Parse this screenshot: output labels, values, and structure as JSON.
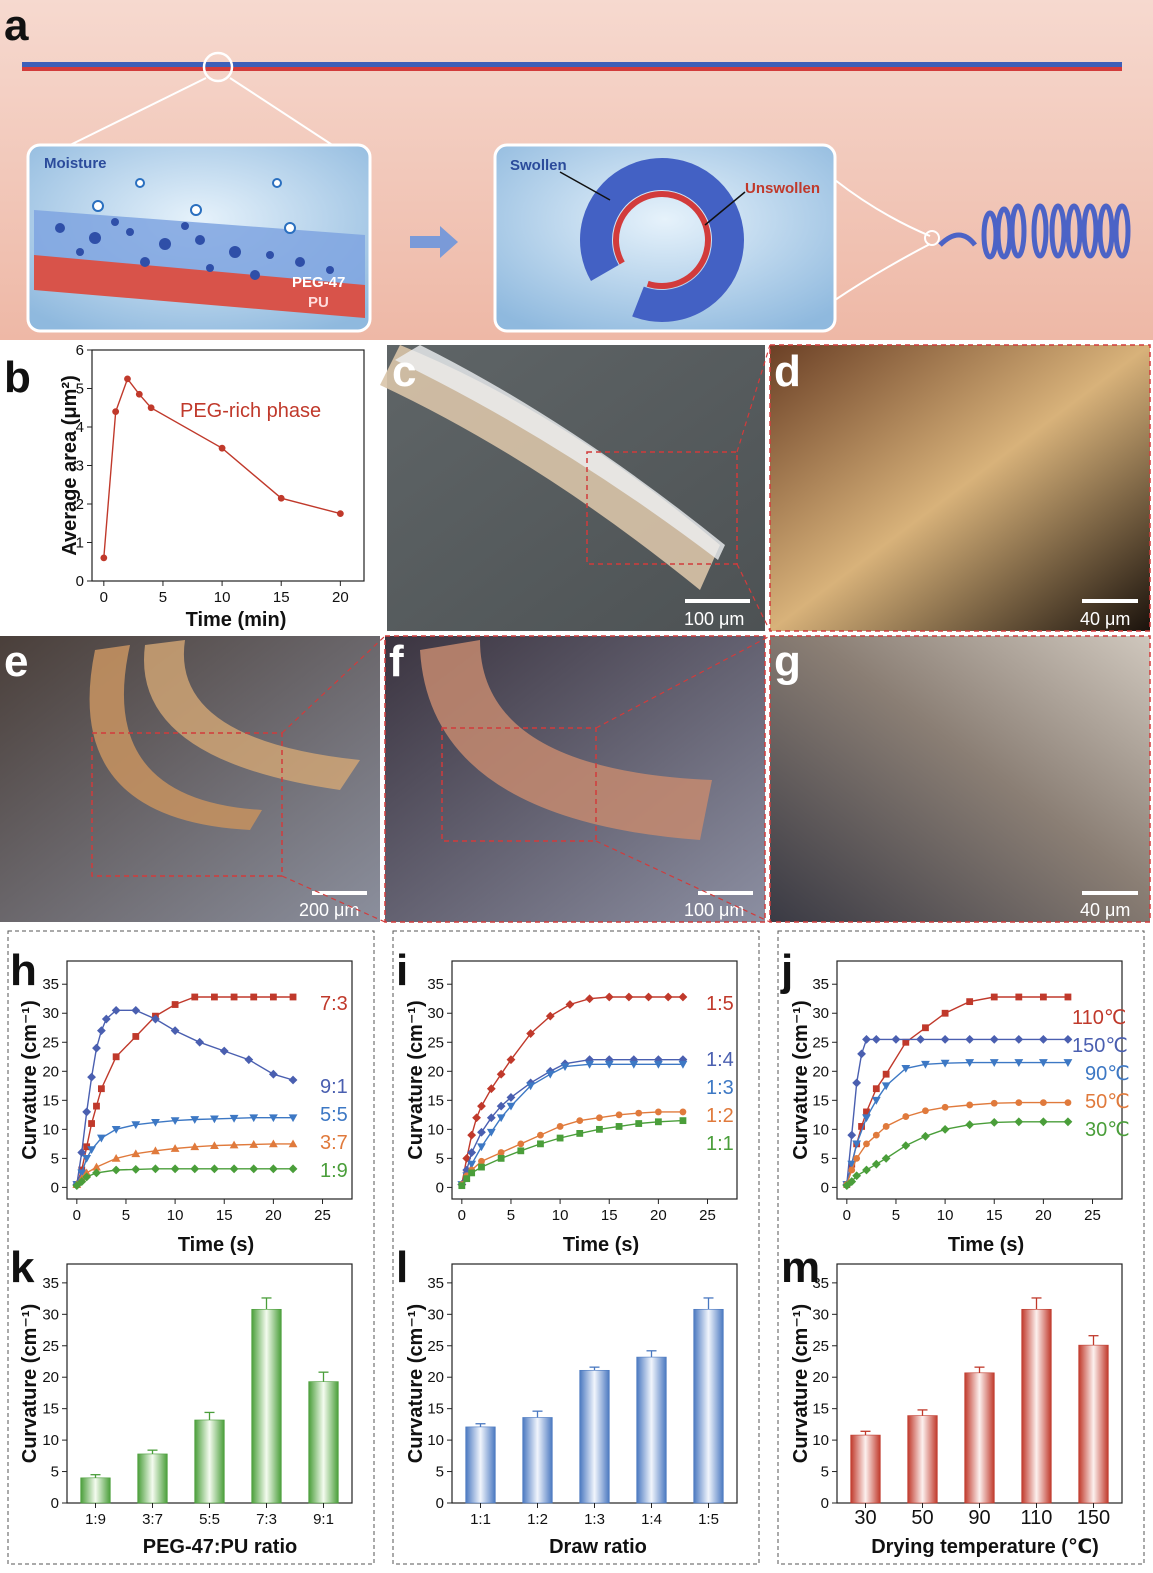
{
  "panels": {
    "a": "a",
    "b": "b",
    "c": "c",
    "d": "d",
    "e": "e",
    "f": "f",
    "g": "g",
    "h": "h",
    "i": "i",
    "j": "j",
    "k": "k",
    "l": "l",
    "m": "m"
  },
  "schematic": {
    "moisture": "Moisture",
    "peg47": "PEG-47",
    "pu": "PU",
    "swollen": "Swollen",
    "unswollen": "Unswollen"
  },
  "scalebars": {
    "c": "100 μm",
    "d": "40 μm",
    "e": "200 μm",
    "f": "100 μm",
    "g": "40 μm"
  },
  "colors": {
    "red": "#c0392b",
    "blue": "#4a5fb0",
    "lightblue": "#3d78c4",
    "orange": "#e07a3c",
    "green": "#4a9e3a"
  },
  "chart_data": [
    {
      "panel": "b",
      "type": "line",
      "xlabel": "Time (min)",
      "ylabel": "Average area (μm²)",
      "xlim": [
        -1,
        22
      ],
      "ylim": [
        0,
        6
      ],
      "xticks": [
        0,
        5,
        10,
        15,
        20
      ],
      "yticks": [
        0,
        1,
        2,
        3,
        4,
        5,
        6
      ],
      "series": [
        {
          "name": "PEG-rich phase",
          "color": "#c0392b",
          "x": [
            0,
            1,
            2,
            3,
            4,
            10,
            15,
            20
          ],
          "y": [
            0.6,
            4.4,
            5.25,
            4.85,
            4.5,
            3.45,
            2.15,
            1.75
          ]
        }
      ]
    },
    {
      "panel": "h",
      "type": "line",
      "xlabel": "Time (s)",
      "ylabel": "Curvature (cm⁻¹)",
      "xlim": [
        -1,
        28
      ],
      "ylim": [
        -2,
        39
      ],
      "xticks": [
        0,
        5,
        10,
        15,
        20,
        25
      ],
      "yticks": [
        0,
        5,
        10,
        15,
        20,
        25,
        30,
        35
      ],
      "series": [
        {
          "name": "7:3",
          "color": "#c0392b",
          "marker": "square",
          "x": [
            0,
            0.5,
            1,
            1.5,
            2,
            2.5,
            4,
            6,
            8,
            10,
            12,
            14,
            16,
            18,
            20,
            22
          ],
          "y": [
            0.5,
            3,
            7,
            11,
            14,
            17,
            22.5,
            26,
            29.5,
            31.5,
            32.8,
            32.8,
            32.8,
            32.8,
            32.8,
            32.8
          ]
        },
        {
          "name": "9:1",
          "color": "#4a5fb0",
          "marker": "diamond",
          "x": [
            0,
            0.5,
            1,
            1.5,
            2,
            2.5,
            3,
            4,
            6,
            8,
            10,
            12.5,
            15,
            17.5,
            20,
            22
          ],
          "y": [
            0.5,
            6,
            13,
            19,
            24,
            27,
            29,
            30.5,
            30.5,
            29,
            27,
            25,
            23.5,
            22,
            19.5,
            18.5
          ]
        },
        {
          "name": "5:5",
          "color": "#3d78c4",
          "marker": "triangle-down",
          "x": [
            0,
            0.5,
            1,
            1.5,
            2.5,
            4,
            6,
            8,
            10,
            12,
            14,
            16,
            18,
            20,
            22
          ],
          "y": [
            0.5,
            2.5,
            5,
            6.5,
            8.5,
            10,
            10.8,
            11.2,
            11.5,
            11.7,
            11.8,
            11.9,
            12,
            12,
            12
          ]
        },
        {
          "name": "3:7",
          "color": "#e07a3c",
          "marker": "triangle",
          "x": [
            0,
            0.5,
            1,
            2,
            4,
            6,
            8,
            10,
            12,
            14,
            16,
            18,
            20,
            22
          ],
          "y": [
            0.5,
            1.5,
            2.5,
            3.5,
            5,
            5.8,
            6.3,
            6.7,
            7,
            7.2,
            7.3,
            7.4,
            7.5,
            7.5
          ]
        },
        {
          "name": "1:9",
          "color": "#4a9e3a",
          "marker": "diamond",
          "x": [
            0,
            0.5,
            1,
            2,
            4,
            6,
            8,
            10,
            12,
            14,
            16,
            18,
            20,
            22
          ],
          "y": [
            0.3,
            1,
            1.8,
            2.5,
            3,
            3.1,
            3.2,
            3.2,
            3.2,
            3.2,
            3.2,
            3.2,
            3.2,
            3.2
          ]
        }
      ]
    },
    {
      "panel": "i",
      "type": "line",
      "xlabel": "Time (s)",
      "ylabel": "Curvature (cm⁻¹)",
      "xlim": [
        -1,
        28
      ],
      "ylim": [
        -2,
        39
      ],
      "xticks": [
        0,
        5,
        10,
        15,
        20,
        25
      ],
      "yticks": [
        0,
        5,
        10,
        15,
        20,
        25,
        30,
        35
      ],
      "series": [
        {
          "name": "1:5",
          "color": "#c0392b",
          "marker": "diamond",
          "x": [
            0,
            0.5,
            1,
            1.5,
            2,
            3,
            4,
            5,
            7,
            9,
            11,
            13,
            15,
            17,
            19,
            21,
            22.5
          ],
          "y": [
            0.5,
            5,
            9,
            12,
            14,
            17,
            19.5,
            22,
            26.5,
            29.5,
            31.5,
            32.5,
            32.8,
            32.8,
            32.8,
            32.8,
            32.8
          ]
        },
        {
          "name": "1:4",
          "color": "#4a5fb0",
          "marker": "diamond",
          "x": [
            0,
            0.5,
            1,
            2,
            3,
            4,
            5,
            7,
            9,
            10.5,
            13,
            15,
            17.5,
            20,
            22.5
          ],
          "y": [
            0.5,
            3,
            6,
            9.5,
            12,
            14,
            15.5,
            18,
            20,
            21.3,
            22,
            22,
            22,
            22,
            22
          ]
        },
        {
          "name": "1:3",
          "color": "#3d78c4",
          "marker": "triangle-down",
          "x": [
            0,
            0.5,
            1,
            2,
            3,
            4,
            5,
            7,
            9,
            10.5,
            13,
            15,
            17.5,
            20,
            22.5
          ],
          "y": [
            0.5,
            2,
            4,
            7,
            9.5,
            12,
            14,
            17.5,
            19.5,
            20.8,
            21.2,
            21.2,
            21.2,
            21.2,
            21.2
          ]
        },
        {
          "name": "1:2",
          "color": "#e07a3c",
          "marker": "circle",
          "x": [
            0,
            0.5,
            1,
            2,
            4,
            6,
            8,
            10,
            12,
            14,
            16,
            18,
            20,
            22.5
          ],
          "y": [
            0.5,
            2,
            3,
            4.5,
            6,
            7.5,
            9,
            10.5,
            11.5,
            12,
            12.5,
            12.8,
            13,
            13
          ]
        },
        {
          "name": "1:1",
          "color": "#4a9e3a",
          "marker": "square",
          "x": [
            0,
            0.5,
            1,
            2,
            4,
            6,
            8,
            10,
            12,
            14,
            16,
            18,
            20,
            22.5
          ],
          "y": [
            0.3,
            1.5,
            2.5,
            3.5,
            5,
            6.3,
            7.5,
            8.5,
            9.3,
            10,
            10.5,
            11,
            11.3,
            11.5
          ]
        }
      ]
    },
    {
      "panel": "j",
      "type": "line",
      "xlabel": "Time (s)",
      "ylabel": "Curvature (cm⁻¹)",
      "xlim": [
        -1,
        28
      ],
      "ylim": [
        -2,
        39
      ],
      "xticks": [
        0,
        5,
        10,
        15,
        20,
        25
      ],
      "yticks": [
        0,
        5,
        10,
        15,
        20,
        25,
        30,
        35
      ],
      "series": [
        {
          "name": "110℃",
          "color": "#c0392b",
          "marker": "square",
          "x": [
            0,
            0.5,
            1,
            1.5,
            2,
            3,
            4,
            6,
            8,
            10,
            12.5,
            15,
            17.5,
            20,
            22.5
          ],
          "y": [
            0.5,
            4,
            7.5,
            10.5,
            13,
            17,
            19.5,
            25,
            27.5,
            30,
            32,
            32.8,
            32.8,
            32.8,
            32.8
          ]
        },
        {
          "name": "150℃",
          "color": "#4a5fb0",
          "marker": "diamond",
          "x": [
            0,
            0.5,
            1,
            1.5,
            2,
            3,
            5,
            7.5,
            10,
            12.5,
            15,
            17.5,
            20,
            22.5
          ],
          "y": [
            0.5,
            9,
            18,
            23,
            25.5,
            25.5,
            25.5,
            25.5,
            25.5,
            25.5,
            25.5,
            25.5,
            25.5,
            25.5
          ]
        },
        {
          "name": "90℃",
          "color": "#3d78c4",
          "marker": "triangle-down",
          "x": [
            0,
            0.5,
            1,
            2,
            3,
            4,
            6,
            8,
            10,
            12.5,
            15,
            17.5,
            20,
            22.5
          ],
          "y": [
            0.5,
            4,
            7.5,
            12,
            15,
            17.5,
            20.5,
            21.2,
            21.4,
            21.5,
            21.5,
            21.5,
            21.5,
            21.5
          ]
        },
        {
          "name": "50℃",
          "color": "#e07a3c",
          "marker": "circle",
          "x": [
            0,
            0.5,
            1,
            2,
            3,
            4,
            6,
            8,
            10,
            12.5,
            15,
            17.5,
            20,
            22.5
          ],
          "y": [
            0.5,
            3,
            5,
            7.5,
            9,
            10.5,
            12.2,
            13.2,
            13.8,
            14.2,
            14.5,
            14.6,
            14.6,
            14.6
          ]
        },
        {
          "name": "30℃",
          "color": "#4a9e3a",
          "marker": "diamond",
          "x": [
            0,
            0.5,
            1,
            2,
            3,
            4,
            6,
            8,
            10,
            12.5,
            15,
            17.5,
            20,
            22.5
          ],
          "y": [
            0.3,
            1,
            2,
            3,
            4,
            5,
            7.2,
            8.8,
            10,
            10.8,
            11.2,
            11.3,
            11.3,
            11.3
          ]
        }
      ]
    },
    {
      "panel": "k",
      "type": "bar",
      "xlabel": "PEG-47:PU ratio",
      "ylabel": "Curvature (cm⁻¹)",
      "ylim": [
        0,
        38
      ],
      "yticks": [
        0,
        5,
        10,
        15,
        20,
        25,
        30,
        35
      ],
      "categories": [
        "1:9",
        "3:7",
        "5:5",
        "7:3",
        "9:1"
      ],
      "values": [
        4,
        7.8,
        13.2,
        30.8,
        19.3
      ],
      "errors": [
        0.5,
        0.6,
        1.2,
        1.8,
        1.5
      ],
      "color": "#4a9e3a"
    },
    {
      "panel": "l",
      "type": "bar",
      "xlabel": "Draw ratio",
      "ylabel": "Curvature (cm⁻¹)",
      "ylim": [
        0,
        38
      ],
      "yticks": [
        0,
        5,
        10,
        15,
        20,
        25,
        30,
        35
      ],
      "categories": [
        "1:1",
        "1:2",
        "1:3",
        "1:4",
        "1:5"
      ],
      "values": [
        12.1,
        13.6,
        21.1,
        23.2,
        30.8
      ],
      "errors": [
        0.5,
        1.0,
        0.5,
        1.0,
        1.8
      ],
      "color": "#4a78c0"
    },
    {
      "panel": "m",
      "type": "bar",
      "xlabel": "Drying temperature (℃)",
      "ylabel": "Curvature (cm⁻¹)",
      "ylim": [
        0,
        38
      ],
      "yticks": [
        0,
        5,
        10,
        15,
        20,
        25,
        30,
        35
      ],
      "categories": [
        "30",
        "50",
        "90",
        "110",
        "150"
      ],
      "values": [
        10.8,
        13.9,
        20.7,
        30.8,
        25.1
      ],
      "errors": [
        0.6,
        0.9,
        0.9,
        1.8,
        1.5
      ],
      "color": "#c0392b"
    }
  ]
}
